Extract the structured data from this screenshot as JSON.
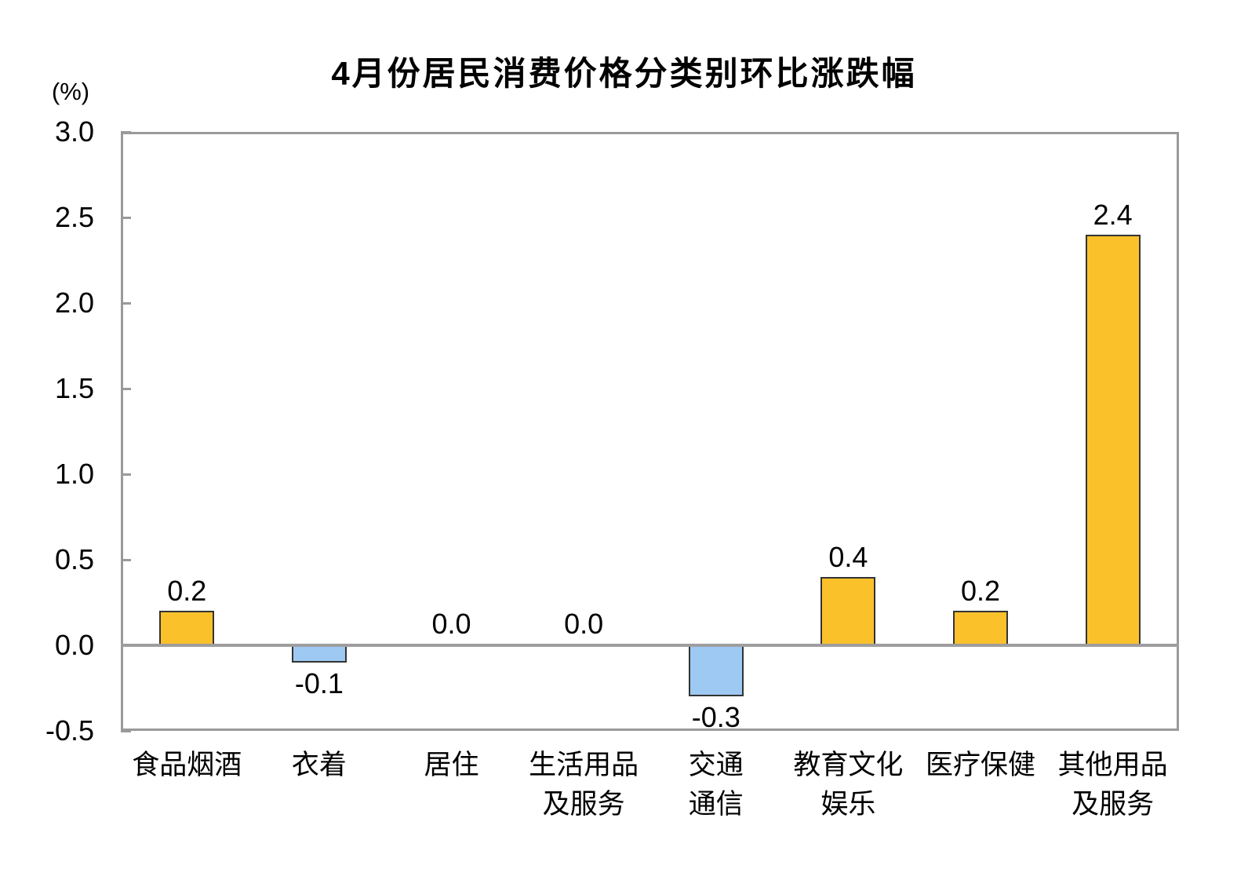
{
  "chart_data": {
    "type": "bar",
    "title": "4月份居民消费价格分类别环比涨跌幅",
    "unit_label": "(%)",
    "categories": [
      [
        "食品烟酒"
      ],
      [
        "衣着"
      ],
      [
        "居住"
      ],
      [
        "生活用品",
        "及服务"
      ],
      [
        "交通",
        "通信"
      ],
      [
        "教育文化",
        "娱乐"
      ],
      [
        "医疗保健"
      ],
      [
        "其他用品",
        "及服务"
      ]
    ],
    "values": [
      0.2,
      -0.1,
      0.0,
      0.0,
      -0.3,
      0.4,
      0.2,
      2.4
    ],
    "value_labels": [
      "0.2",
      "-0.1",
      "0.0",
      "0.0",
      "-0.3",
      "0.4",
      "0.2",
      "2.4"
    ],
    "yticks": [
      "3.0",
      "2.5",
      "2.0",
      "1.5",
      "1.0",
      "0.5",
      "0.0",
      "-0.5"
    ],
    "ylim": [
      -0.5,
      3.0
    ],
    "grid": false,
    "legend": "none",
    "colors": {
      "positive": "#FBC12B",
      "negative": "#9DC9F2",
      "bar_border": "#333333",
      "axis": "#9A9A9A",
      "zero_line": "#9E9E9E",
      "text": "#000000",
      "background": "#FFFFFF"
    }
  }
}
